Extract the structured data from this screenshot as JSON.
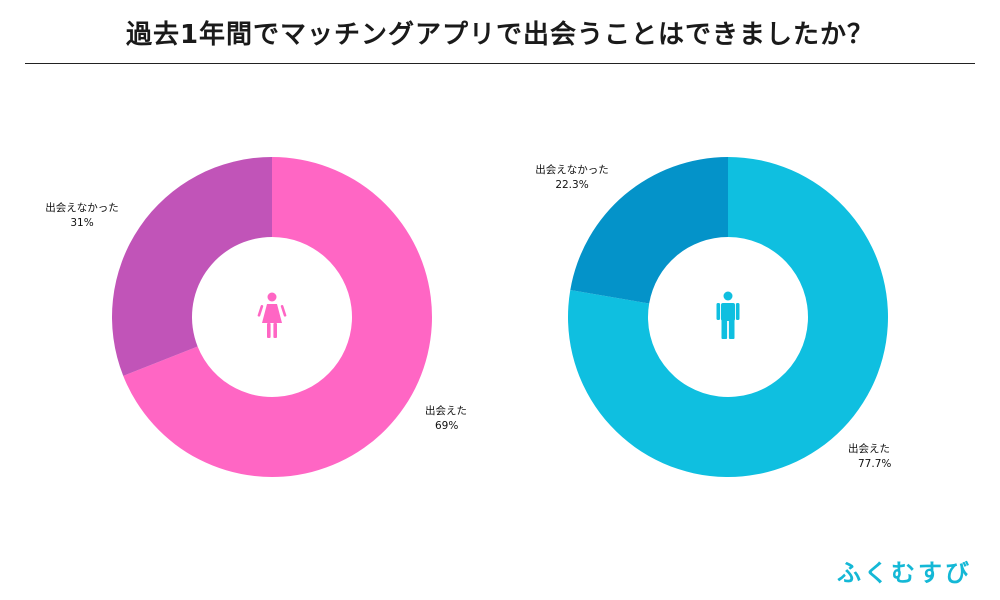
{
  "title": "過去1年間でマッチングアプリで出会うことはできましたか？",
  "brand": {
    "part1": "ふくむすび",
    "part2": ""
  },
  "colors": {
    "female_main": "#ff66c4",
    "female_secondary": "#c154b8",
    "male_main": "#0fbfe0",
    "male_secondary": "#0493c9",
    "brand_blue": "#14b8d6",
    "brand_pink": "#e33c8f"
  },
  "chart_data": [
    {
      "type": "pie",
      "center_icon": "female-icon",
      "slices": [
        {
          "label": "出会えた",
          "value": 69,
          "display": "69%",
          "color": "#ff66c4"
        },
        {
          "label": "出会えなかった",
          "value": 31,
          "display": "31%",
          "color": "#c154b8"
        }
      ]
    },
    {
      "type": "pie",
      "center_icon": "male-icon",
      "slices": [
        {
          "label": "出会えた",
          "value": 77.7,
          "display": "77.7%",
          "color": "#0fbfe0"
        },
        {
          "label": "出会えなかった",
          "value": 22.3,
          "display": "22.3%",
          "color": "#0493c9"
        }
      ]
    }
  ]
}
